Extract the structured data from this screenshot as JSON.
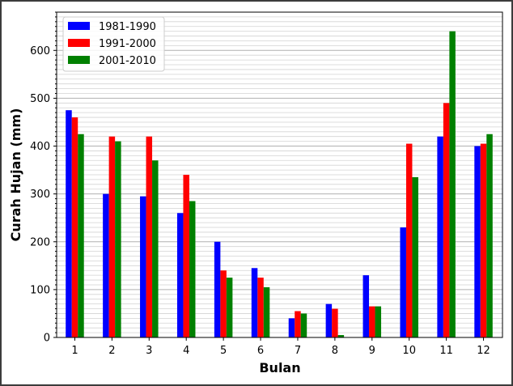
{
  "chart_data": {
    "type": "bar",
    "xlabel": "Bulan",
    "ylabel": "Curah Hujan (mm)",
    "ylim": [
      0,
      680
    ],
    "yticks": [
      0,
      100,
      200,
      300,
      400,
      500,
      600
    ],
    "grid": "horizontal minor and major",
    "legend_position": "top-left",
    "categories": [
      "1",
      "2",
      "3",
      "4",
      "5",
      "6",
      "7",
      "8",
      "9",
      "10",
      "11",
      "12"
    ],
    "series": [
      {
        "name": "1981-1990",
        "color": "#0000ff",
        "values": [
          475,
          300,
          295,
          260,
          200,
          145,
          40,
          70,
          130,
          230,
          420,
          400
        ]
      },
      {
        "name": "1991-2000",
        "color": "#ff0000",
        "values": [
          460,
          420,
          420,
          340,
          140,
          125,
          55,
          60,
          65,
          405,
          490,
          405
        ]
      },
      {
        "name": "2001-2010",
        "color": "#008000",
        "values": [
          425,
          410,
          370,
          285,
          125,
          105,
          50,
          5,
          65,
          335,
          640,
          425
        ]
      }
    ]
  }
}
